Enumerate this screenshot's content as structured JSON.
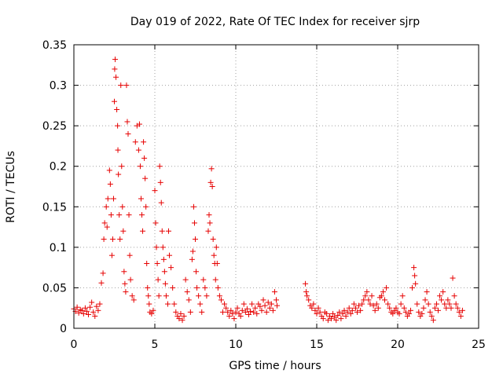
{
  "chart_data": {
    "type": "scatter",
    "title": "Day 019 of 2022, Rate Of TEC Index for receiver sjrp",
    "xlabel": "GPS time / hours",
    "ylabel": "ROTI / TECUs",
    "xlim": [
      0,
      25
    ],
    "ylim": [
      0,
      0.35
    ],
    "xticks": [
      0,
      5,
      10,
      15,
      20,
      25
    ],
    "yticks": [
      0,
      0.05,
      0.1,
      0.15,
      0.2,
      0.25,
      0.3,
      0.35
    ],
    "xtick_labels": [
      "0",
      "5",
      "10",
      "15",
      "20",
      "25"
    ],
    "ytick_labels": [
      "0",
      "0.05",
      "0.1",
      "0.15",
      "0.2",
      "0.25",
      "0.3",
      "0.35"
    ],
    "grid": true,
    "marker": "+",
    "marker_color": "#e60000",
    "series": [
      {
        "name": "ROTI",
        "points": [
          [
            0.0,
            0.024
          ],
          [
            0.1,
            0.021
          ],
          [
            0.2,
            0.026
          ],
          [
            0.3,
            0.019
          ],
          [
            0.4,
            0.023
          ],
          [
            0.5,
            0.022
          ],
          [
            0.6,
            0.018
          ],
          [
            0.7,
            0.025
          ],
          [
            0.8,
            0.021
          ],
          [
            0.9,
            0.017
          ],
          [
            1.0,
            0.026
          ],
          [
            1.1,
            0.032
          ],
          [
            1.2,
            0.02
          ],
          [
            1.3,
            0.015
          ],
          [
            1.4,
            0.027
          ],
          [
            1.5,
            0.022
          ],
          [
            1.6,
            0.03
          ],
          [
            1.7,
            0.056
          ],
          [
            1.8,
            0.068
          ],
          [
            1.85,
            0.11
          ],
          [
            1.9,
            0.13
          ],
          [
            2.0,
            0.15
          ],
          [
            2.05,
            0.125
          ],
          [
            2.1,
            0.16
          ],
          [
            2.2,
            0.195
          ],
          [
            2.25,
            0.178
          ],
          [
            2.3,
            0.14
          ],
          [
            2.35,
            0.09
          ],
          [
            2.4,
            0.11
          ],
          [
            2.45,
            0.16
          ],
          [
            2.5,
            0.28
          ],
          [
            2.52,
            0.32
          ],
          [
            2.55,
            0.332
          ],
          [
            2.6,
            0.31
          ],
          [
            2.65,
            0.27
          ],
          [
            2.7,
            0.25
          ],
          [
            2.72,
            0.22
          ],
          [
            2.75,
            0.19
          ],
          [
            2.8,
            0.14
          ],
          [
            2.85,
            0.11
          ],
          [
            2.9,
            0.3
          ],
          [
            2.95,
            0.2
          ],
          [
            3.0,
            0.15
          ],
          [
            3.05,
            0.12
          ],
          [
            3.1,
            0.07
          ],
          [
            3.15,
            0.055
          ],
          [
            3.2,
            0.045
          ],
          [
            3.25,
            0.3
          ],
          [
            3.3,
            0.255
          ],
          [
            3.35,
            0.24
          ],
          [
            3.4,
            0.14
          ],
          [
            3.45,
            0.09
          ],
          [
            3.5,
            0.06
          ],
          [
            3.6,
            0.04
          ],
          [
            3.7,
            0.035
          ],
          [
            3.8,
            0.23
          ],
          [
            3.9,
            0.25
          ],
          [
            4.0,
            0.22
          ],
          [
            4.05,
            0.252
          ],
          [
            4.1,
            0.2
          ],
          [
            4.15,
            0.16
          ],
          [
            4.2,
            0.14
          ],
          [
            4.25,
            0.12
          ],
          [
            4.3,
            0.23
          ],
          [
            4.35,
            0.21
          ],
          [
            4.4,
            0.185
          ],
          [
            4.45,
            0.15
          ],
          [
            4.5,
            0.08
          ],
          [
            4.55,
            0.05
          ],
          [
            4.6,
            0.04
          ],
          [
            4.65,
            0.03
          ],
          [
            4.7,
            0.02
          ],
          [
            4.8,
            0.018
          ],
          [
            4.9,
            0.022
          ],
          [
            5.0,
            0.17
          ],
          [
            5.05,
            0.13
          ],
          [
            5.1,
            0.1
          ],
          [
            5.15,
            0.08
          ],
          [
            5.2,
            0.06
          ],
          [
            5.25,
            0.04
          ],
          [
            5.3,
            0.2
          ],
          [
            5.35,
            0.18
          ],
          [
            5.4,
            0.155
          ],
          [
            5.45,
            0.12
          ],
          [
            5.5,
            0.1
          ],
          [
            5.55,
            0.085
          ],
          [
            5.6,
            0.07
          ],
          [
            5.65,
            0.055
          ],
          [
            5.7,
            0.04
          ],
          [
            5.8,
            0.03
          ],
          [
            5.85,
            0.12
          ],
          [
            5.9,
            0.09
          ],
          [
            6.0,
            0.075
          ],
          [
            6.1,
            0.05
          ],
          [
            6.2,
            0.03
          ],
          [
            6.3,
            0.02
          ],
          [
            6.4,
            0.015
          ],
          [
            6.5,
            0.012
          ],
          [
            6.6,
            0.018
          ],
          [
            6.7,
            0.01
          ],
          [
            6.8,
            0.015
          ],
          [
            6.9,
            0.06
          ],
          [
            7.0,
            0.045
          ],
          [
            7.1,
            0.035
          ],
          [
            7.2,
            0.02
          ],
          [
            7.3,
            0.085
          ],
          [
            7.35,
            0.095
          ],
          [
            7.4,
            0.15
          ],
          [
            7.45,
            0.13
          ],
          [
            7.5,
            0.11
          ],
          [
            7.55,
            0.07
          ],
          [
            7.6,
            0.05
          ],
          [
            7.7,
            0.04
          ],
          [
            7.8,
            0.03
          ],
          [
            7.9,
            0.02
          ],
          [
            8.0,
            0.06
          ],
          [
            8.1,
            0.05
          ],
          [
            8.2,
            0.04
          ],
          [
            8.3,
            0.12
          ],
          [
            8.35,
            0.14
          ],
          [
            8.4,
            0.13
          ],
          [
            8.45,
            0.18
          ],
          [
            8.5,
            0.197
          ],
          [
            8.55,
            0.175
          ],
          [
            8.6,
            0.11
          ],
          [
            8.65,
            0.09
          ],
          [
            8.7,
            0.08
          ],
          [
            8.75,
            0.06
          ],
          [
            8.8,
            0.1
          ],
          [
            8.85,
            0.08
          ],
          [
            8.9,
            0.05
          ],
          [
            9.0,
            0.04
          ],
          [
            9.1,
            0.035
          ],
          [
            9.2,
            0.02
          ],
          [
            9.3,
            0.03
          ],
          [
            9.4,
            0.025
          ],
          [
            9.5,
            0.02
          ],
          [
            9.6,
            0.015
          ],
          [
            9.7,
            0.022
          ],
          [
            9.8,
            0.018
          ],
          [
            9.9,
            0.012
          ],
          [
            10.0,
            0.02
          ],
          [
            10.1,
            0.025
          ],
          [
            10.2,
            0.018
          ],
          [
            10.3,
            0.015
          ],
          [
            10.4,
            0.022
          ],
          [
            10.5,
            0.03
          ],
          [
            10.6,
            0.02
          ],
          [
            10.7,
            0.024
          ],
          [
            10.8,
            0.017
          ],
          [
            10.9,
            0.021
          ],
          [
            11.0,
            0.03
          ],
          [
            11.1,
            0.02
          ],
          [
            11.2,
            0.025
          ],
          [
            11.3,
            0.018
          ],
          [
            11.4,
            0.03
          ],
          [
            11.5,
            0.027
          ],
          [
            11.6,
            0.022
          ],
          [
            11.7,
            0.035
          ],
          [
            11.8,
            0.028
          ],
          [
            11.9,
            0.02
          ],
          [
            12.0,
            0.032
          ],
          [
            12.1,
            0.025
          ],
          [
            12.2,
            0.03
          ],
          [
            12.3,
            0.022
          ],
          [
            12.4,
            0.045
          ],
          [
            12.5,
            0.035
          ],
          [
            12.55,
            0.028
          ],
          [
            14.3,
            0.055
          ],
          [
            14.35,
            0.045
          ],
          [
            14.4,
            0.04
          ],
          [
            14.5,
            0.035
          ],
          [
            14.6,
            0.028
          ],
          [
            14.7,
            0.025
          ],
          [
            14.8,
            0.03
          ],
          [
            14.9,
            0.022
          ],
          [
            15.0,
            0.018
          ],
          [
            15.1,
            0.025
          ],
          [
            15.2,
            0.02
          ],
          [
            15.3,
            0.015
          ],
          [
            15.4,
            0.012
          ],
          [
            15.5,
            0.02
          ],
          [
            15.6,
            0.018
          ],
          [
            15.7,
            0.01
          ],
          [
            15.8,
            0.015
          ],
          [
            15.9,
            0.012
          ],
          [
            16.0,
            0.018
          ],
          [
            16.1,
            0.014
          ],
          [
            16.2,
            0.01
          ],
          [
            16.3,
            0.016
          ],
          [
            16.4,
            0.02
          ],
          [
            16.5,
            0.012
          ],
          [
            16.6,
            0.018
          ],
          [
            16.7,
            0.022
          ],
          [
            16.8,
            0.015
          ],
          [
            16.9,
            0.02
          ],
          [
            17.0,
            0.025
          ],
          [
            17.1,
            0.018
          ],
          [
            17.2,
            0.022
          ],
          [
            17.3,
            0.03
          ],
          [
            17.4,
            0.025
          ],
          [
            17.5,
            0.02
          ],
          [
            17.6,
            0.028
          ],
          [
            17.7,
            0.022
          ],
          [
            17.8,
            0.03
          ],
          [
            17.9,
            0.035
          ],
          [
            18.0,
            0.04
          ],
          [
            18.1,
            0.045
          ],
          [
            18.2,
            0.035
          ],
          [
            18.3,
            0.03
          ],
          [
            18.4,
            0.04
          ],
          [
            18.5,
            0.028
          ],
          [
            18.6,
            0.022
          ],
          [
            18.7,
            0.03
          ],
          [
            18.8,
            0.025
          ],
          [
            18.9,
            0.038
          ],
          [
            19.0,
            0.04
          ],
          [
            19.1,
            0.045
          ],
          [
            19.2,
            0.035
          ],
          [
            19.3,
            0.05
          ],
          [
            19.4,
            0.03
          ],
          [
            19.5,
            0.025
          ],
          [
            19.6,
            0.02
          ],
          [
            19.7,
            0.018
          ],
          [
            19.8,
            0.022
          ],
          [
            19.9,
            0.025
          ],
          [
            20.0,
            0.02
          ],
          [
            20.1,
            0.018
          ],
          [
            20.2,
            0.03
          ],
          [
            20.3,
            0.04
          ],
          [
            20.4,
            0.025
          ],
          [
            20.5,
            0.02
          ],
          [
            20.6,
            0.015
          ],
          [
            20.7,
            0.018
          ],
          [
            20.8,
            0.022
          ],
          [
            20.9,
            0.05
          ],
          [
            21.0,
            0.075
          ],
          [
            21.05,
            0.065
          ],
          [
            21.1,
            0.055
          ],
          [
            21.2,
            0.03
          ],
          [
            21.3,
            0.02
          ],
          [
            21.4,
            0.015
          ],
          [
            21.5,
            0.018
          ],
          [
            21.6,
            0.025
          ],
          [
            21.7,
            0.035
          ],
          [
            21.8,
            0.045
          ],
          [
            21.9,
            0.03
          ],
          [
            22.0,
            0.02
          ],
          [
            22.1,
            0.015
          ],
          [
            22.2,
            0.01
          ],
          [
            22.3,
            0.025
          ],
          [
            22.4,
            0.03
          ],
          [
            22.5,
            0.022
          ],
          [
            22.6,
            0.04
          ],
          [
            22.7,
            0.035
          ],
          [
            22.8,
            0.045
          ],
          [
            22.9,
            0.03
          ],
          [
            23.0,
            0.025
          ],
          [
            23.1,
            0.035
          ],
          [
            23.2,
            0.03
          ],
          [
            23.3,
            0.025
          ],
          [
            23.4,
            0.062
          ],
          [
            23.5,
            0.04
          ],
          [
            23.6,
            0.03
          ],
          [
            23.7,
            0.025
          ],
          [
            23.8,
            0.02
          ],
          [
            23.9,
            0.015
          ],
          [
            24.0,
            0.022
          ]
        ]
      }
    ]
  }
}
